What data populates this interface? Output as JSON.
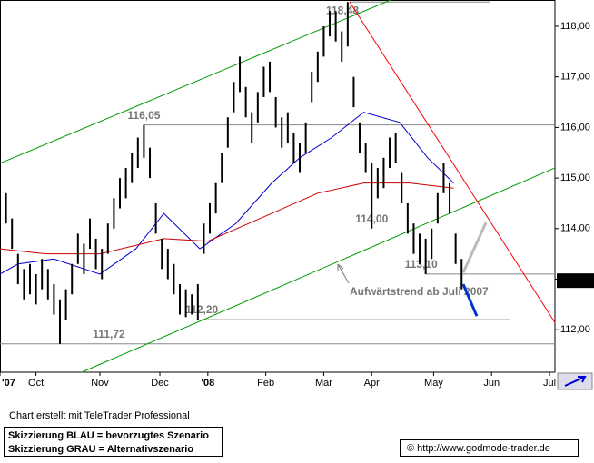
{
  "chart_data": {
    "type": "ohlc",
    "xlim": [
      0,
      277.7
    ],
    "ylim": [
      111.16,
      118.52
    ],
    "xticks": [
      {
        "value": 0,
        "label": "'07"
      },
      {
        "value": 18,
        "label": "Oct"
      },
      {
        "value": 50,
        "label": "Nov"
      },
      {
        "value": 80,
        "label": "Dec"
      },
      {
        "value": 104,
        "label": "'08"
      },
      {
        "value": 133,
        "label": "Feb"
      },
      {
        "value": 162,
        "label": "Mar"
      },
      {
        "value": 186,
        "label": "Apr"
      },
      {
        "value": 217,
        "label": "May"
      },
      {
        "value": 246,
        "label": "Jun"
      },
      {
        "value": 275,
        "label": "Jul"
      }
    ],
    "yticks": [
      {
        "value": 112,
        "label": "112,00"
      },
      {
        "value": 113,
        "label": "113,00"
      },
      {
        "value": 114,
        "label": "114,00"
      },
      {
        "value": 115,
        "label": "115,00"
      },
      {
        "value": 116,
        "label": "116,00"
      },
      {
        "value": 117,
        "label": "117,00"
      },
      {
        "value": 118,
        "label": "118,00"
      }
    ],
    "color": "#000000",
    "x": [
      0,
      3,
      6,
      9,
      12,
      15,
      18,
      21,
      24,
      27,
      30,
      33,
      36,
      39,
      42,
      45,
      48,
      51,
      54,
      57,
      60,
      63,
      66,
      69,
      72,
      75,
      78,
      81,
      84,
      87,
      90,
      93,
      96,
      99,
      102,
      105,
      108,
      111,
      114,
      117,
      120,
      123,
      126,
      129,
      132,
      135,
      138,
      141,
      144,
      147,
      150,
      153,
      156,
      159,
      162,
      165,
      168,
      171,
      174,
      177,
      180,
      183,
      186,
      189,
      192,
      195,
      198,
      201,
      204,
      207,
      210,
      213,
      216,
      219,
      222,
      225,
      228,
      231
    ],
    "high": [
      114.9,
      114.7,
      114.2,
      113.5,
      113.2,
      113.3,
      113.1,
      113.4,
      113.2,
      112.9,
      112.6,
      112.8,
      113.3,
      113.9,
      113.7,
      114.2,
      113.8,
      113.6,
      114.1,
      114.6,
      115.0,
      115.2,
      115.5,
      115.8,
      116.05,
      115.6,
      114.5,
      113.8,
      113.6,
      113.3,
      112.9,
      112.8,
      112.7,
      112.9,
      114.1,
      114.5,
      114.9,
      115.5,
      116.2,
      116.9,
      117.4,
      116.8,
      116.3,
      116.7,
      117.2,
      117.3,
      116.6,
      116.2,
      116.3,
      115.9,
      115.7,
      116.1,
      117.1,
      117.5,
      118.0,
      118.3,
      118.3,
      117.9,
      118.48,
      117.0,
      116.1,
      115.7,
      115.3,
      115.2,
      115.4,
      115.8,
      115.9,
      115.1,
      114.5,
      114.1,
      113.9,
      113.8,
      114.0,
      114.7,
      115.3,
      114.9,
      113.9,
      113.4
    ],
    "low": [
      114.3,
      114.1,
      113.6,
      112.9,
      112.6,
      112.7,
      112.5,
      112.8,
      112.6,
      112.3,
      111.72,
      112.2,
      112.7,
      113.3,
      113.1,
      113.6,
      113.2,
      113.0,
      113.5,
      114.0,
      114.4,
      114.6,
      114.9,
      115.2,
      115.4,
      115.0,
      113.9,
      113.2,
      113.0,
      112.7,
      112.3,
      112.25,
      112.3,
      112.2,
      113.5,
      113.9,
      114.3,
      114.9,
      115.6,
      116.3,
      116.7,
      116.2,
      115.7,
      116.1,
      116.6,
      116.7,
      116.0,
      115.6,
      115.7,
      115.3,
      115.1,
      115.5,
      116.5,
      116.9,
      117.4,
      117.8,
      117.7,
      117.3,
      117.6,
      116.4,
      115.5,
      115.1,
      114.0,
      114.6,
      114.8,
      115.2,
      115.3,
      114.5,
      113.9,
      113.5,
      113.3,
      113.1,
      113.4,
      114.1,
      114.7,
      114.3,
      113.3,
      112.8
    ],
    "overlays": [
      {
        "color": "#0000cc",
        "x": [
          0,
          9,
          27,
          50,
          68,
          82,
          100,
          118,
          136,
          150,
          166,
          182,
          200,
          214,
          227
        ],
        "values": [
          113.1,
          113.3,
          113.4,
          113.1,
          113.6,
          114.3,
          113.6,
          114.1,
          114.9,
          115.4,
          115.8,
          116.3,
          116.1,
          115.4,
          114.9
        ]
      },
      {
        "color": "#cc0000",
        "x": [
          0,
          23,
          50,
          82,
          104,
          136,
          159,
          182,
          205,
          227
        ],
        "values": [
          113.6,
          113.5,
          113.5,
          113.8,
          113.75,
          114.3,
          114.7,
          114.9,
          114.9,
          114.8
        ]
      },
      {
        "color": "#009900",
        "x": [
          0,
          195.5
        ],
        "values": [
          115.29,
          118.52
        ]
      },
      {
        "color": "#009900",
        "x": [
          40.9,
          277.7
        ],
        "values": [
          111.16,
          115.2
        ]
      },
      {
        "color": "#ff0000",
        "x": [
          175,
          277.7
        ],
        "values": [
          118.48,
          112.14
        ]
      },
      {
        "color": "#0033cc",
        "x": [
          231.8,
          238.6
        ],
        "values": [
          112.9,
          112.27
        ]
      },
      {
        "color": "#bbbbbb",
        "x": [
          231.8,
          243.2
        ],
        "values": [
          113.13,
          114.12
        ]
      }
    ],
    "levels": [
      {
        "value": 118.48,
        "label": "118,48",
        "from": 175,
        "to": 245
      },
      {
        "value": 116.05,
        "label": "116,05",
        "from": 72,
        "to": 277.7
      },
      {
        "value": 114.0,
        "label": "114,00"
      },
      {
        "value": 113.1,
        "label": "113,10",
        "from": 213,
        "to": 277.7
      },
      {
        "value": 112.2,
        "label": "112,20",
        "from": 101,
        "to": 255
      },
      {
        "value": 111.72,
        "label": "111,72",
        "from": 0,
        "to": 277.7
      }
    ],
    "last_price": {
      "value": 112.97,
      "label": "112,97"
    },
    "annotation": "Aufwärtstrend ab Juli 2007",
    "credit": "Chart erstellt mit TeleTrader Professional",
    "legend_notes": [
      "Skizzierung BLAU = bevorzugtes Szenario",
      "Skizzierung GRAU = Alternativszenario"
    ],
    "source": "© http://www.godmode-trader.de"
  }
}
